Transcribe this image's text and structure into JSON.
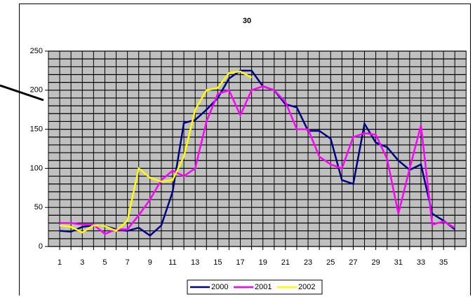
{
  "chart_data": {
    "type": "line",
    "title": "30",
    "categories": [
      1,
      null,
      3,
      null,
      5,
      null,
      7,
      null,
      9,
      null,
      11,
      null,
      13,
      null,
      15,
      null,
      17,
      null,
      19,
      null,
      21,
      null,
      23,
      null,
      25,
      null,
      27,
      null,
      29,
      null,
      31,
      null,
      33,
      null,
      35,
      null
    ],
    "series": [
      {
        "name": "2000",
        "color": "#000080",
        "values": [
          20,
          19,
          25,
          27,
          26,
          22,
          20,
          24,
          14,
          27,
          70,
          158,
          162,
          175,
          190,
          215,
          225,
          225,
          205,
          200,
          182,
          178,
          148,
          148,
          138,
          85,
          80,
          157,
          133,
          127,
          110,
          98,
          105,
          42,
          33,
          22
        ]
      },
      {
        "name": "2001",
        "color": "#ff00ff",
        "values": [
          30,
          30,
          28,
          28,
          16,
          22,
          22,
          40,
          60,
          85,
          97,
          90,
          100,
          160,
          195,
          200,
          168,
          200,
          205,
          200,
          185,
          150,
          150,
          115,
          105,
          100,
          140,
          145,
          143,
          112,
          42,
          100,
          155,
          28,
          32,
          24
        ]
      },
      {
        "name": "2002",
        "color": "#ffff00",
        "values": [
          27,
          25,
          18,
          27,
          26,
          20,
          33,
          100,
          88,
          83,
          85,
          115,
          175,
          200,
          203,
          222,
          224,
          216,
          null,
          null,
          null,
          null,
          null,
          null,
          null,
          null,
          null,
          null,
          null,
          null,
          null,
          null,
          null,
          null,
          null,
          null
        ]
      }
    ],
    "ylim": [
      0,
      250
    ],
    "yticks": [
      0,
      50,
      100,
      150,
      200,
      250
    ],
    "y_minor_ticks": [
      0,
      10,
      20,
      30,
      40,
      50,
      60,
      70,
      80,
      90,
      100,
      110,
      120,
      130,
      140,
      150,
      160,
      170,
      180,
      190,
      200,
      210,
      220,
      230,
      240,
      250
    ],
    "grid": true,
    "plot_background": "#c0c0c0",
    "legend": "bottom"
  }
}
